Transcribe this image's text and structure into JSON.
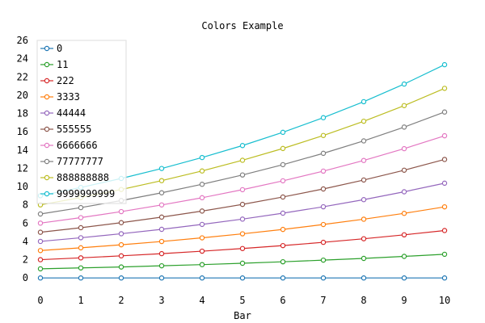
{
  "chart_data": {
    "type": "line",
    "title": "Colors Example",
    "xlabel": "Bar",
    "ylabel": "",
    "x": [
      0,
      1,
      2,
      3,
      4,
      5,
      6,
      7,
      8,
      9,
      10
    ],
    "xlim": [
      0,
      10
    ],
    "ylim": [
      -0.6,
      26
    ],
    "xticks": [
      "0",
      "1",
      "2",
      "3",
      "4",
      "5",
      "6",
      "7",
      "8",
      "9",
      "10"
    ],
    "yticks": [
      "0",
      "2",
      "4",
      "6",
      "8",
      "10",
      "12",
      "14",
      "16",
      "18",
      "20",
      "22",
      "24",
      "26"
    ],
    "grid": false,
    "legend_position": "top-left",
    "series": [
      {
        "name": "0",
        "color": "#1f77b4",
        "values": [
          0,
          0,
          0,
          0,
          0,
          0,
          0,
          0,
          0,
          0,
          0
        ]
      },
      {
        "name": "11",
        "color": "#2ca02c",
        "values": [
          1.0,
          1.1,
          1.2,
          1.33,
          1.46,
          1.61,
          1.77,
          1.95,
          2.14,
          2.36,
          2.59
        ]
      },
      {
        "name": "222",
        "color": "#d62728",
        "values": [
          2.0,
          2.2,
          2.42,
          2.66,
          2.93,
          3.22,
          3.54,
          3.9,
          4.29,
          4.72,
          5.19
        ]
      },
      {
        "name": "3333",
        "color": "#ff7f0e",
        "values": [
          3.0,
          3.3,
          3.63,
          3.99,
          4.39,
          4.83,
          5.31,
          5.85,
          6.43,
          7.07,
          7.78
        ]
      },
      {
        "name": "44444",
        "color": "#9467bd",
        "values": [
          4.0,
          4.4,
          4.84,
          5.32,
          5.86,
          6.44,
          7.09,
          7.79,
          8.57,
          9.43,
          10.37
        ]
      },
      {
        "name": "555555",
        "color": "#8c564b",
        "values": [
          5.0,
          5.5,
          6.05,
          6.66,
          7.32,
          8.05,
          8.86,
          9.74,
          10.72,
          11.79,
          12.97
        ]
      },
      {
        "name": "6666666",
        "color": "#e377c2",
        "values": [
          6.0,
          6.6,
          7.26,
          7.99,
          8.78,
          9.66,
          10.63,
          11.69,
          12.86,
          14.15,
          15.56
        ]
      },
      {
        "name": "77777777",
        "color": "#7f7f7f",
        "values": [
          7.0,
          7.7,
          8.47,
          9.32,
          10.25,
          11.27,
          12.4,
          13.64,
          15.0,
          16.51,
          18.16
        ]
      },
      {
        "name": "888888888",
        "color": "#bcbd22",
        "values": [
          8.0,
          8.8,
          9.68,
          10.65,
          11.71,
          12.88,
          14.17,
          15.59,
          17.15,
          18.86,
          20.75
        ]
      },
      {
        "name": "9999999999",
        "color": "#17becf",
        "values": [
          9.0,
          9.9,
          10.89,
          11.98,
          13.18,
          14.49,
          15.94,
          17.54,
          19.29,
          21.22,
          23.34
        ]
      }
    ]
  }
}
